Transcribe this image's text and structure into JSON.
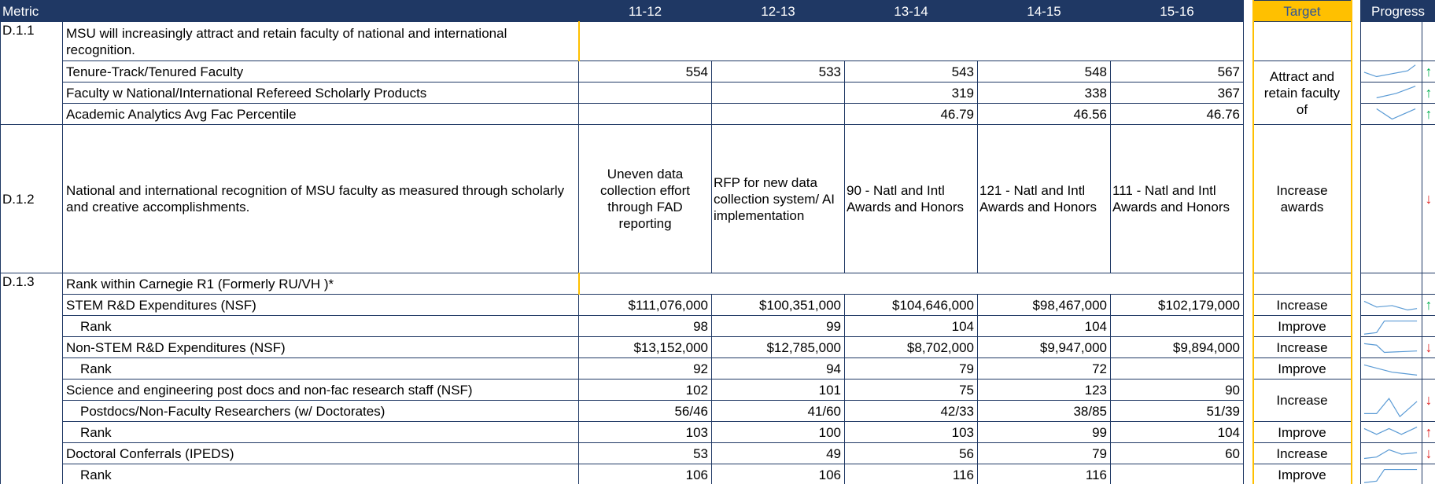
{
  "header": [
    "Metric",
    "11-12",
    "12-13",
    "13-14",
    "14-15",
    "15-16",
    "Target",
    "Progress"
  ],
  "rows": [
    {
      "code": "D.1.1",
      "label": "MSU will increasingly attract and retain faculty of national and international recognition."
    },
    {
      "label": "Tenure-Track/Tenured Faculty",
      "values": [
        554,
        533,
        543,
        548,
        567
      ],
      "target": "Attract and retain faculty of",
      "trend": "↑"
    },
    {
      "label": "Faculty w National/International Refereed Scholarly Products",
      "values": [
        null,
        null,
        319,
        338,
        367
      ],
      "trend": "↑"
    },
    {
      "label": "Academic Analytics  Avg Fac Percentile",
      "values": [
        null,
        null,
        46.79,
        46.56,
        46.76
      ],
      "trend": "↑"
    },
    {
      "code": "D.1.2",
      "label": "National and international recognition of MSU faculty as measured through scholarly and creative accomplishments.",
      "values": [
        "Uneven data collection effort through FAD reporting",
        "RFP for new data collection system/ AI implementation",
        "90 - Natl and Intl Awards and Honors",
        "121 - Natl and Intl Awards and Honors",
        "111 - Natl and Intl Awards and Honors"
      ],
      "target": "Increase awards",
      "trend": "↓"
    },
    {
      "code": "D.1.3",
      "label": "Rank within Carnegie R1 (Formerly RU/VH )*"
    },
    {
      "label": "STEM R&D Expenditures (NSF)",
      "values": [
        "$111,076,000",
        "$100,351,000",
        "$104,646,000",
        "$98,467,000",
        "$102,179,000"
      ],
      "target": "Increase",
      "trend": "↑"
    },
    {
      "label": "Rank",
      "values": [
        98,
        99,
        104,
        104,
        null
      ],
      "target": "Improve"
    },
    {
      "label": "Non-STEM R&D Expenditures  (NSF)",
      "values": [
        "$13,152,000",
        "$12,785,000",
        "$8,702,000",
        "$9,947,000",
        "$9,894,000"
      ],
      "target": "Increase",
      "trend": "↓"
    },
    {
      "label": "Rank",
      "values": [
        92,
        94,
        79,
        72,
        null
      ],
      "target": "Improve"
    },
    {
      "label": "Science and engineering post docs and non-fac research staff  (NSF)",
      "values": [
        102,
        101,
        75,
        123,
        90
      ],
      "target": "Increase",
      "trend": "↓"
    },
    {
      "label": "Postdocs/Non-Faculty Researchers (w/ Doctorates)",
      "values": [
        "56/46",
        "41/60",
        "42/33",
        "38/85",
        "51/39"
      ]
    },
    {
      "label": "Rank",
      "values": [
        103,
        100,
        103,
        99,
        104
      ],
      "target": "Improve",
      "trend": "↑"
    },
    {
      "label": "Doctoral Conferrals (IPEDS)",
      "values": [
        53,
        49,
        56,
        79,
        60
      ],
      "target": "Increase",
      "trend": "↓"
    },
    {
      "label": "Rank",
      "values": [
        106,
        106,
        116,
        116,
        null
      ],
      "target": "Improve"
    }
  ]
}
